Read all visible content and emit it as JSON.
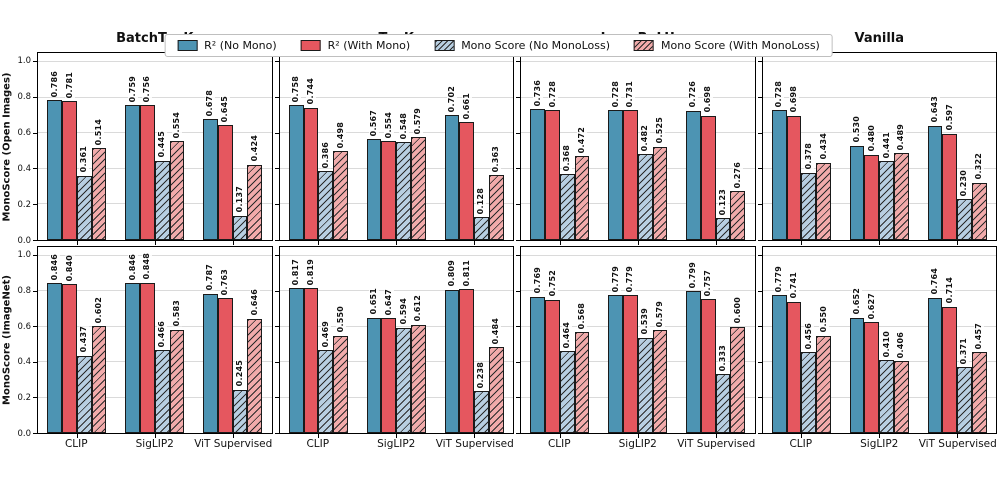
{
  "chart_data": {
    "type": "bar",
    "layout": {
      "rows": 2,
      "cols": 4,
      "sharey": true,
      "grid": "horizontal",
      "legend_position": "top center"
    },
    "col_titles": [
      "BatchTopK",
      "TopK",
      "JumpReLU",
      "Vanilla"
    ],
    "row_ylabels": [
      "MonoScore (Open Images)",
      "MonoScore (ImageNet)"
    ],
    "categories": [
      "CLIP",
      "SigLIP2",
      "ViT Supervised"
    ],
    "ylim": [
      0,
      1.05
    ],
    "yticks": [
      0.0,
      0.2,
      0.4,
      0.6,
      0.8,
      1.0
    ],
    "value_label_decimals": 3,
    "series_style": [
      {
        "name": "R² (No Mono)",
        "slug": "r2-no-mono",
        "fill": "#4d94b3",
        "hatch": false
      },
      {
        "name": "R² (With Mono)",
        "slug": "r2-with-mono",
        "fill": "#e5575f",
        "hatch": false
      },
      {
        "name": "Mono Score (No MonoLoss)",
        "slug": "mono-score-no-monoloss",
        "fill": "#b8cfe2",
        "hatch": true
      },
      {
        "name": "Mono Score (With MonoLoss)",
        "slug": "mono-score-with-monoloss",
        "fill": "#f2abab",
        "hatch": true
      }
    ],
    "panels": [
      {
        "row": 0,
        "col": 0,
        "row_label": "MonoScore (Open Images)",
        "col_label": "BatchTopK",
        "values": [
          [
            0.786,
            0.781,
            0.361,
            0.514
          ],
          [
            0.759,
            0.756,
            0.445,
            0.554
          ],
          [
            0.678,
            0.645,
            0.137,
            0.424
          ]
        ]
      },
      {
        "row": 0,
        "col": 1,
        "row_label": "MonoScore (Open Images)",
        "col_label": "TopK",
        "values": [
          [
            0.758,
            0.744,
            0.386,
            0.498
          ],
          [
            0.567,
            0.554,
            0.548,
            0.579
          ],
          [
            0.702,
            0.661,
            0.128,
            0.363
          ]
        ]
      },
      {
        "row": 0,
        "col": 2,
        "row_label": "MonoScore (Open Images)",
        "col_label": "JumpReLU",
        "values": [
          [
            0.736,
            0.728,
            0.368,
            0.472
          ],
          [
            0.728,
            0.731,
            0.482,
            0.525
          ],
          [
            0.726,
            0.698,
            0.123,
            0.276
          ]
        ]
      },
      {
        "row": 0,
        "col": 3,
        "row_label": "MonoScore (Open Images)",
        "col_label": "Vanilla",
        "values": [
          [
            0.728,
            0.698,
            0.378,
            0.434
          ],
          [
            0.53,
            0.48,
            0.441,
            0.489
          ],
          [
            0.643,
            0.597,
            0.23,
            0.322
          ]
        ]
      },
      {
        "row": 1,
        "col": 0,
        "row_label": "MonoScore (ImageNet)",
        "col_label": "BatchTopK",
        "values": [
          [
            0.846,
            0.84,
            0.437,
            0.602
          ],
          [
            0.846,
            0.848,
            0.466,
            0.583
          ],
          [
            0.787,
            0.763,
            0.245,
            0.646
          ]
        ]
      },
      {
        "row": 1,
        "col": 1,
        "row_label": "MonoScore (ImageNet)",
        "col_label": "TopK",
        "values": [
          [
            0.817,
            0.819,
            0.469,
            0.55
          ],
          [
            0.651,
            0.647,
            0.594,
            0.612
          ],
          [
            0.809,
            0.811,
            0.238,
            0.484
          ]
        ]
      },
      {
        "row": 1,
        "col": 2,
        "row_label": "MonoScore (ImageNet)",
        "col_label": "JumpReLU",
        "values": [
          [
            0.769,
            0.752,
            0.464,
            0.568
          ],
          [
            0.779,
            0.779,
            0.539,
            0.579
          ],
          [
            0.799,
            0.757,
            0.333,
            0.6
          ]
        ]
      },
      {
        "row": 1,
        "col": 3,
        "row_label": "MonoScore (ImageNet)",
        "col_label": "Vanilla",
        "values": [
          [
            0.779,
            0.741,
            0.456,
            0.55
          ],
          [
            0.652,
            0.627,
            0.41,
            0.406
          ],
          [
            0.764,
            0.714,
            0.371,
            0.457
          ]
        ]
      }
    ],
    "colors": {
      "bar_edge": "#1a1a1a",
      "gridline": "#dadada",
      "spine": "#000000",
      "hatch_line": "#2a2a2a",
      "background": "#ffffff"
    }
  }
}
